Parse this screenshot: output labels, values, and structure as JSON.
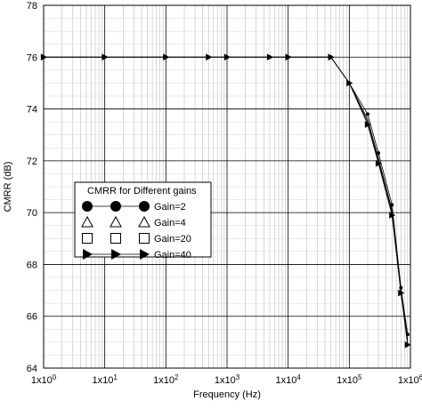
{
  "chart_data": {
    "type": "line",
    "xlabel": "Frequency (Hz)",
    "ylabel": "CMRR (dB)",
    "xscale": "log",
    "xlim": [
      1,
      1000000
    ],
    "ylim": [
      64,
      78
    ],
    "grid": true,
    "legend_placement": "center-left",
    "x_tick_values": [
      1,
      10,
      100,
      1000,
      10000,
      100000,
      1000000
    ],
    "x_tick_labels": [
      "1x10",
      "1x10",
      "1x10",
      "1x10",
      "1x10",
      "1x10",
      "1x10"
    ],
    "x_tick_exponents": [
      "0",
      "1",
      "2",
      "3",
      "4",
      "5",
      "6"
    ],
    "y_tick_values": [
      64,
      66,
      68,
      70,
      72,
      74,
      76,
      78
    ],
    "y_tick_labels": [
      "64",
      "66",
      "68",
      "70",
      "72",
      "74",
      "76",
      "78"
    ],
    "legend_title": "CMRR for Different gains",
    "series": [
      {
        "name": "Gain=2",
        "marker": "circle",
        "x": [
          1,
          10,
          100,
          500,
          1000,
          5000,
          10000,
          50000,
          100000,
          200000,
          300000,
          500000,
          700000,
          900000
        ],
        "y": [
          76,
          76,
          76,
          76,
          76,
          76,
          76,
          76,
          75.0,
          73.8,
          72.3,
          70.3,
          67.1,
          65.3
        ]
      },
      {
        "name": "Gain=4",
        "marker": "triangle-up",
        "x": [
          1,
          10,
          100,
          500,
          1000,
          5000,
          10000,
          50000,
          100000,
          200000,
          300000,
          500000,
          700000,
          900000
        ],
        "y": [
          76,
          76,
          76,
          76,
          76,
          76,
          76,
          76,
          75.0,
          73.6,
          72.1,
          70.1,
          67.0,
          65.1
        ]
      },
      {
        "name": "Gain=20",
        "marker": "square",
        "x": [
          1,
          10,
          100,
          500,
          1000,
          5000,
          10000,
          50000,
          100000,
          200000,
          300000,
          500000,
          700000,
          900000
        ],
        "y": [
          76,
          76,
          76,
          76,
          76,
          76,
          76,
          76,
          75.0,
          73.5,
          72.0,
          70.0,
          66.9,
          65.0
        ]
      },
      {
        "name": "Gain=40",
        "marker": "triangle-right",
        "x": [
          1,
          10,
          100,
          500,
          1000,
          5000,
          10000,
          50000,
          100000,
          200000,
          300000,
          500000,
          700000,
          900000
        ],
        "y": [
          76,
          76,
          76,
          76,
          76,
          76,
          76,
          76,
          75.0,
          73.4,
          71.9,
          69.9,
          66.9,
          64.9
        ]
      }
    ]
  }
}
